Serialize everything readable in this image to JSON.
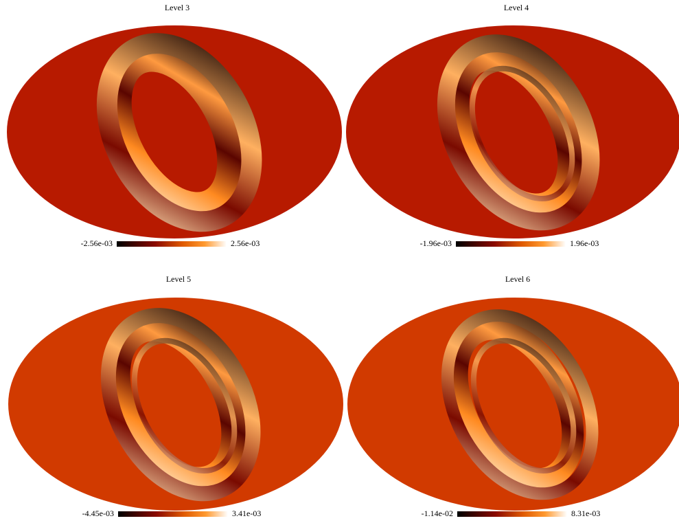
{
  "panels": [
    {
      "title": "Level 3",
      "colorbar": {
        "min_label": "-2.56e-03",
        "max_label": "2.56e-03"
      }
    },
    {
      "title": "Level 4",
      "colorbar": {
        "min_label": "-1.96e-03",
        "max_label": "1.96e-03"
      }
    },
    {
      "title": "Level 5",
      "colorbar": {
        "min_label": "-4.45e-03",
        "max_label": "3.41e-03"
      }
    },
    {
      "title": "Level 6",
      "colorbar": {
        "min_label": "-1.14e-02",
        "max_label": "8.31e-03"
      }
    }
  ]
}
